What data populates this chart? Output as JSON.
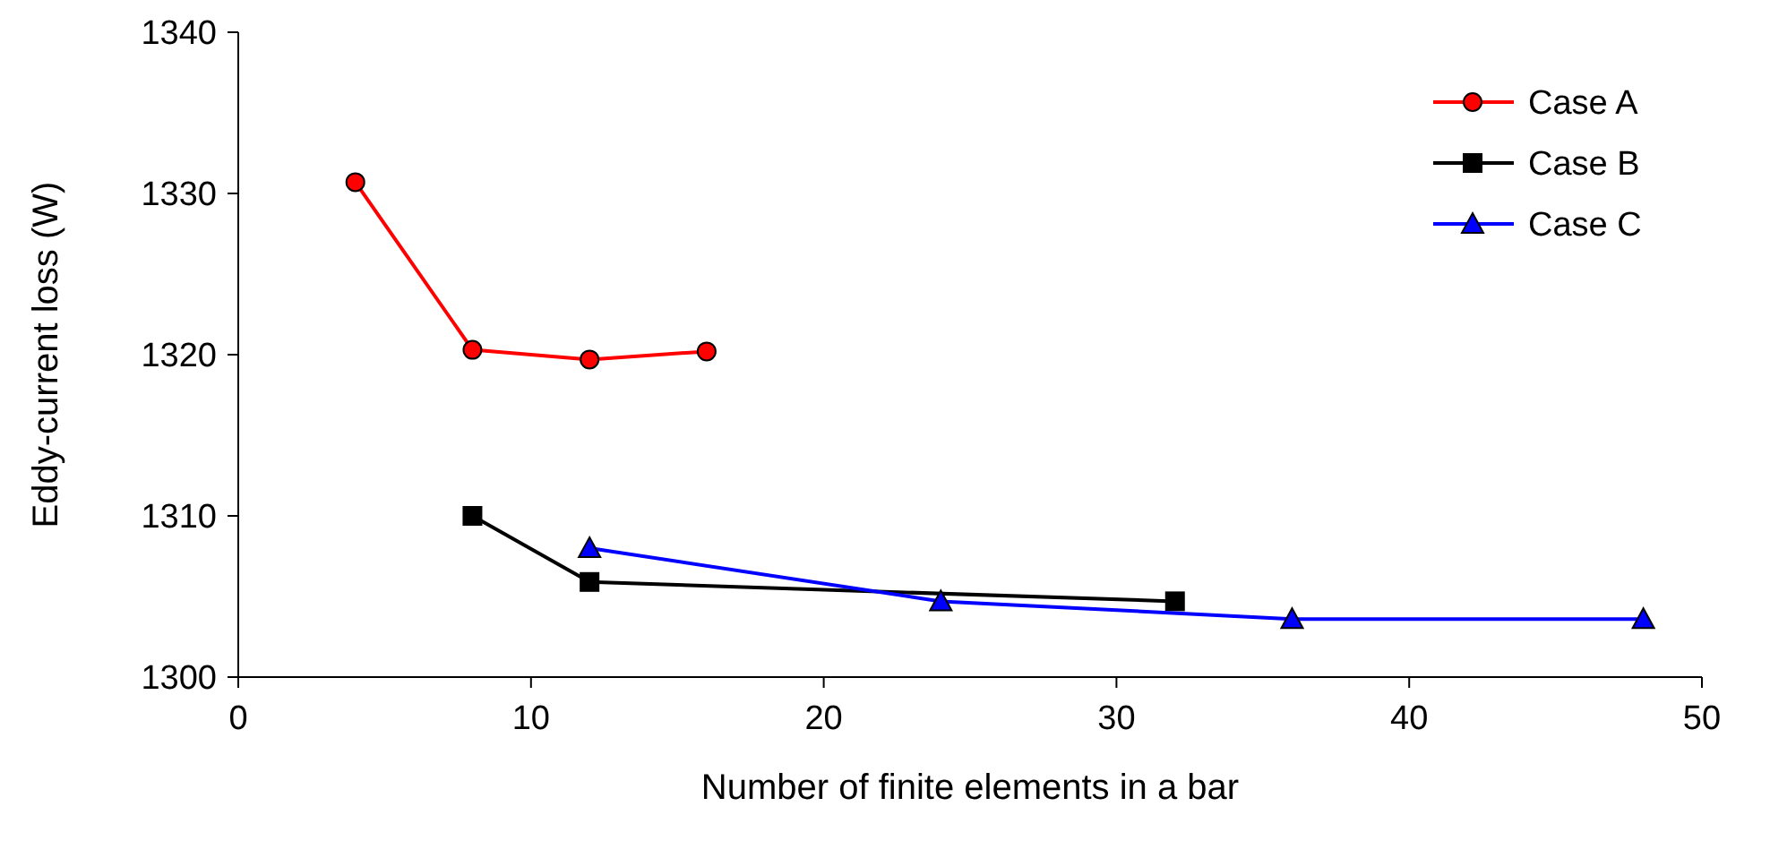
{
  "chart_data": {
    "type": "line",
    "xlabel": "Number of finite elements in a bar",
    "ylabel": "Eddy-current loss (W)",
    "xlim": [
      0,
      50
    ],
    "xticks": [
      0,
      10,
      20,
      30,
      40,
      50
    ],
    "ylim": [
      1300,
      1340
    ],
    "yticks": [
      1300,
      1310,
      1320,
      1330,
      1340
    ],
    "grid": false,
    "legend": "top right",
    "series": [
      {
        "name": "Case A",
        "color": "#ff0000",
        "marker": "circle",
        "x": [
          4,
          8,
          12,
          16
        ],
        "values": [
          1330.7,
          1320.3,
          1319.7,
          1320.2
        ]
      },
      {
        "name": "Case B",
        "color": "#000000",
        "marker": "square",
        "x": [
          8,
          12,
          32
        ],
        "values": [
          1310.0,
          1305.9,
          1304.7
        ]
      },
      {
        "name": "Case C",
        "color": "#0000ff",
        "marker": "triangle",
        "x": [
          12,
          24,
          36,
          48
        ],
        "values": [
          1308.0,
          1304.7,
          1303.6,
          1303.6
        ]
      }
    ]
  }
}
